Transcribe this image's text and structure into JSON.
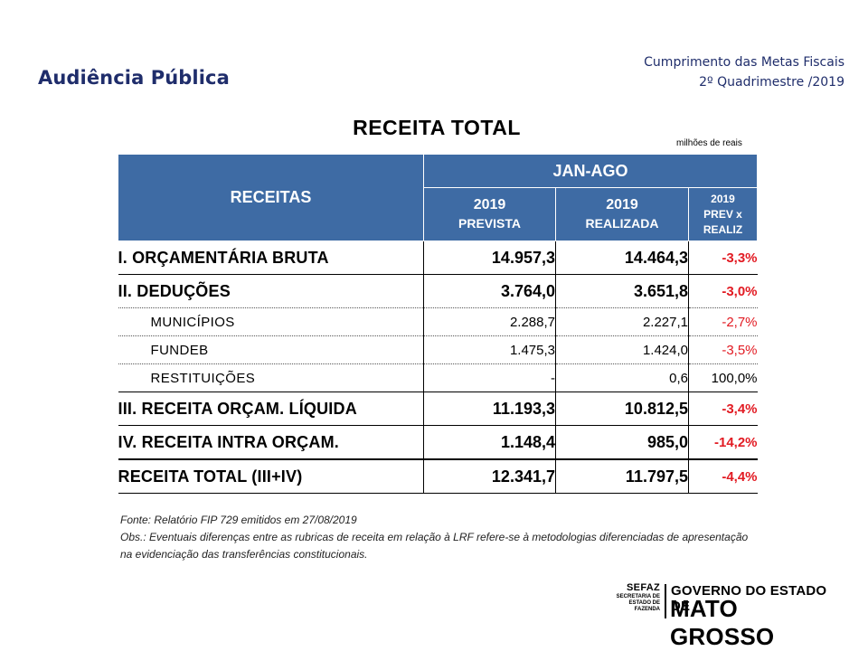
{
  "header": {
    "title": "Audiência Pública",
    "right_line1": "Cumprimento das Metas Fiscais",
    "right_line2": "2º Quadrimestre /2019"
  },
  "table": {
    "title": "RECEITA TOTAL",
    "units": "milhões de reais",
    "head": {
      "receitas": "RECEITAS",
      "period": "JAN-AGO",
      "col1_year": "2019",
      "col1_label": "PREVISTA",
      "col2_year": "2019",
      "col2_label": "REALIZADA",
      "col3_line1": "2019",
      "col3_line2": "PREV x",
      "col3_line3": "REALIZ"
    },
    "rows": [
      {
        "label": "I. ORÇAMENTÁRIA BRUTA",
        "prevista": "14.957,3",
        "realizada": "14.464,3",
        "pct": "-3,3%"
      },
      {
        "label": "II. DEDUÇÕES",
        "prevista": "3.764,0",
        "realizada": "3.651,8",
        "pct": "-3,0%"
      },
      {
        "label": "MUNICÍPIOS",
        "prevista": "2.288,7",
        "realizada": "2.227,1",
        "pct": "-2,7%"
      },
      {
        "label": "FUNDEB",
        "prevista": "1.475,3",
        "realizada": "1.424,0",
        "pct": "-3,5%"
      },
      {
        "label": "RESTITUIÇÕES",
        "prevista": "-",
        "realizada": "0,6",
        "pct": "100,0%"
      },
      {
        "label": "III. RECEITA ORÇAM. LÍQUIDA",
        "prevista": "11.193,3",
        "realizada": "10.812,5",
        "pct": "-3,4%"
      },
      {
        "label": "IV. RECEITA INTRA ORÇAM.",
        "prevista": "1.148,4",
        "realizada": "985,0",
        "pct": "-14,2%"
      },
      {
        "label": "RECEITA TOTAL (III+IV)",
        "prevista": "12.341,7",
        "realizada": "11.797,5",
        "pct": "-4,4%"
      }
    ]
  },
  "notes": {
    "source": "Fonte: Relatório FIP 729 emitidos em 27/08/2019",
    "obs": "Obs.: Eventuais diferenças entre as rubricas de receita em relação à LRF refere-se à metodologias diferenciadas de apresentação na evidenciação das transferências constitucionais."
  },
  "footer": {
    "sefaz": "SEFAZ",
    "sefaz_sub1": "SECRETARIA DE",
    "sefaz_sub2": "ESTADO DE FAZENDA",
    "gov_line1": "GOVERNO DO ESTADO DE",
    "gov_line2": "MATO GROSSO"
  },
  "colors": {
    "header_blue": "#3e6ba4",
    "title_navy": "#1f2d6b",
    "negative_red": "#e21b23"
  }
}
